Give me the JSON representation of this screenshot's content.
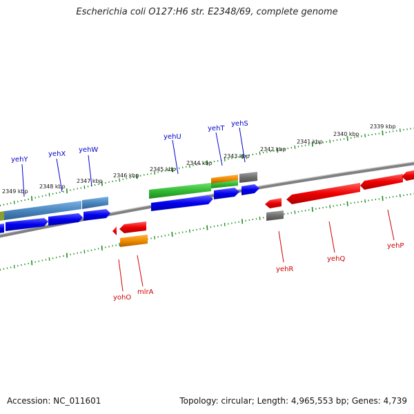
{
  "title": "Escherichia coli O127:H6 str. E2348/69, complete genome",
  "footer": {
    "accession": "Accession: NC_011601",
    "summary": "Topology: circular; Length: 4,965,553 bp; Genes: 4,739"
  },
  "colors": {
    "forward_cds": "#0000ee",
    "reverse_cds": "#ee0000",
    "ticks": "#1a8a1a",
    "backbone": "#808080",
    "forward_label": "#0000cc",
    "reverse_label": "#cc0000",
    "rna_gray": "#707070",
    "orange": "#f08c00",
    "green": "#33bb33",
    "steel": "#4a86c0"
  },
  "kbp_labels": [
    {
      "text": "2349 kbp"
    },
    {
      "text": "2348 kbp"
    },
    {
      "text": "2347 kbp"
    },
    {
      "text": "2346 kbp"
    },
    {
      "text": "2345 kbp"
    },
    {
      "text": "2344 kbp"
    },
    {
      "text": "2343 kbp"
    },
    {
      "text": "2342 kbp"
    },
    {
      "text": "2341 kbp"
    },
    {
      "text": "2340 kbp"
    },
    {
      "text": "2339 kbp"
    }
  ],
  "forward_genes": [
    "yehY",
    "yehX",
    "yehW",
    "yehU",
    "yehT",
    "yehS"
  ],
  "reverse_genes": [
    "yohO",
    "mlrA",
    "yehR",
    "yehQ",
    "yehP"
  ]
}
